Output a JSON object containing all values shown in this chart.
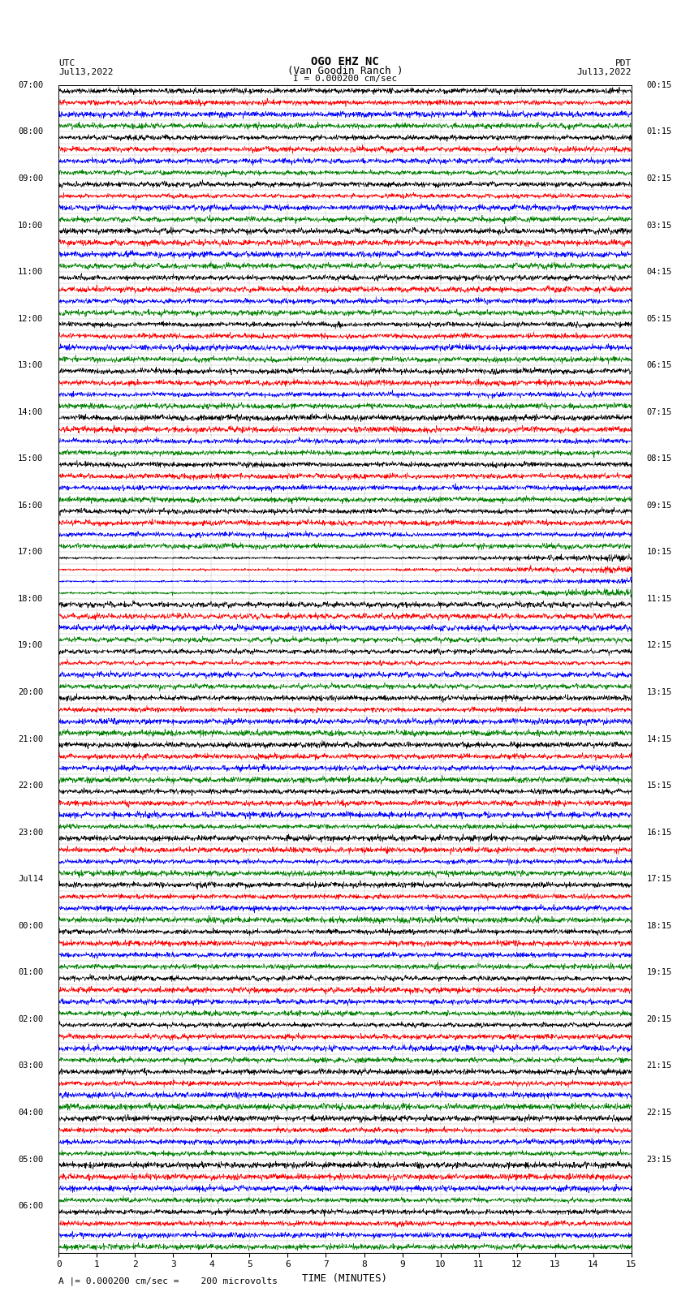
{
  "title_line1": "OGO EHZ NC",
  "title_line2": "(Van Goodin Ranch )",
  "scale_label": "I = 0.000200 cm/sec",
  "footer_label": "A |= 0.000200 cm/sec =    200 microvolts",
  "utc_label": "UTC",
  "pdt_label": "PDT",
  "date_left": "Jul13,2022",
  "date_right": "Jul13,2022",
  "xlabel": "TIME (MINUTES)",
  "xlim": [
    0,
    15
  ],
  "xticks": [
    0,
    1,
    2,
    3,
    4,
    5,
    6,
    7,
    8,
    9,
    10,
    11,
    12,
    13,
    14,
    15
  ],
  "bg_color": "#ffffff",
  "grid_color": "#888888",
  "colors": [
    "black",
    "red",
    "blue",
    "green"
  ],
  "hour_labels_left": [
    "07:00",
    "08:00",
    "09:00",
    "10:00",
    "11:00",
    "12:00",
    "13:00",
    "14:00",
    "15:00",
    "16:00",
    "17:00",
    "18:00",
    "19:00",
    "20:00",
    "21:00",
    "22:00",
    "23:00",
    "Jul14",
    "00:00",
    "01:00",
    "02:00",
    "03:00",
    "04:00",
    "05:00",
    "06:00"
  ],
  "hour_labels_right": [
    "00:15",
    "01:15",
    "02:15",
    "03:15",
    "04:15",
    "05:15",
    "06:15",
    "07:15",
    "08:15",
    "09:15",
    "10:15",
    "11:15",
    "12:15",
    "13:15",
    "14:15",
    "15:15",
    "16:15",
    "17:15",
    "18:15",
    "19:15",
    "20:15",
    "21:15",
    "22:15",
    "23:15"
  ],
  "num_rows": 100,
  "noise_seed": 42,
  "figsize": [
    8.5,
    16.13
  ],
  "dpi": 100,
  "row_amplitude_scale": 0.38
}
